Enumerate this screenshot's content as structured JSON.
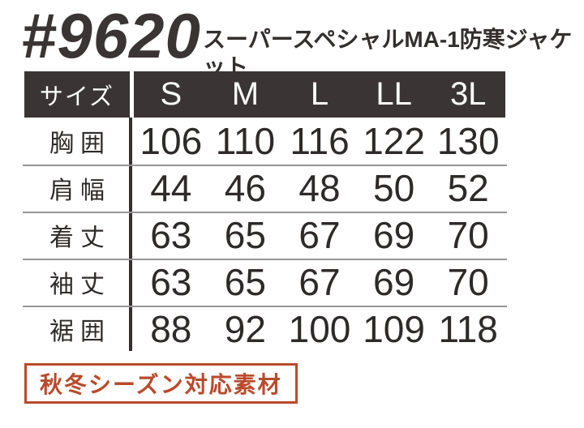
{
  "header": {
    "product_code": "#9620",
    "product_name": "スーパースペシャルMA-1防寒ジャケット"
  },
  "size_table": {
    "corner_label": "サイズ",
    "sizes": [
      "S",
      "M",
      "L",
      "LL",
      "3L"
    ],
    "rows": [
      {
        "label": "胸囲",
        "values": [
          "106",
          "110",
          "116",
          "122",
          "130"
        ]
      },
      {
        "label": "肩幅",
        "values": [
          "44",
          "46",
          "48",
          "50",
          "52"
        ]
      },
      {
        "label": "着丈",
        "values": [
          "63",
          "65",
          "67",
          "69",
          "70"
        ]
      },
      {
        "label": "袖丈",
        "values": [
          "63",
          "65",
          "67",
          "69",
          "70"
        ]
      },
      {
        "label": "裾囲",
        "values": [
          "88",
          "92",
          "100",
          "109",
          "118"
        ]
      }
    ]
  },
  "footer": {
    "badge_label": "秋冬シーズン対応素材"
  },
  "colors": {
    "header_bg": "#3a3534",
    "text_dark": "#2e2b2a",
    "accent_red": "#b94a2b",
    "divider_gray": "#969696"
  },
  "chart_data": {
    "type": "table",
    "title": "#9620 スーパースペシャルMA-1防寒ジャケット",
    "columns": [
      "サイズ",
      "S",
      "M",
      "L",
      "LL",
      "3L"
    ],
    "rows": [
      [
        "胸囲",
        106,
        110,
        116,
        122,
        130
      ],
      [
        "肩幅",
        44,
        46,
        48,
        50,
        52
      ],
      [
        "着丈",
        63,
        65,
        67,
        69,
        70
      ],
      [
        "袖丈",
        63,
        65,
        67,
        69,
        70
      ],
      [
        "裾囲",
        88,
        92,
        100,
        109,
        118
      ]
    ],
    "note": "秋冬シーズン対応素材"
  }
}
